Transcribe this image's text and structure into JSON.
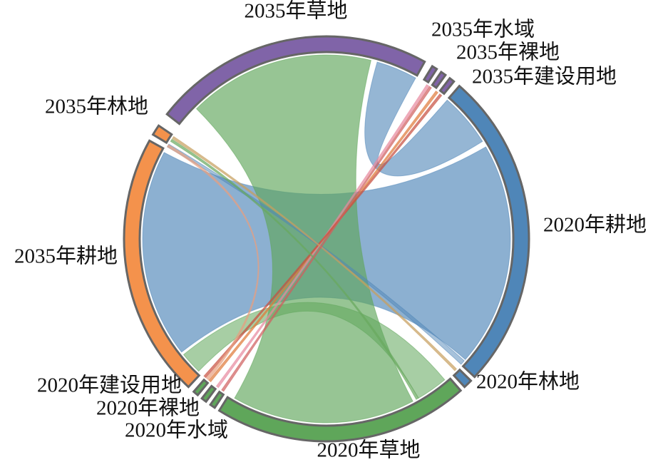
{
  "nodes": [
    {
      "label": "2035年草地",
      "color": "#8064a8"
    },
    {
      "label": "2035年水域",
      "color": "#8064a8"
    },
    {
      "label": "2035年裸地",
      "color": "#8064a8"
    },
    {
      "label": "2035年建设用地",
      "color": "#8064a8"
    },
    {
      "label": "2020年耕地",
      "color": "#4f86b8"
    },
    {
      "label": "2020年林地",
      "color": "#4f86b8"
    },
    {
      "label": "2020年草地",
      "color": "#5fa65a"
    },
    {
      "label": "2020年水域",
      "color": "#5fa65a"
    },
    {
      "label": "2020年裸地",
      "color": "#5fa65a"
    },
    {
      "label": "2020年建设用地",
      "color": "#5fa65a"
    },
    {
      "label": "2035年耕地",
      "color": "#f4924c"
    },
    {
      "label": "2035年林地",
      "color": "#f4924c"
    }
  ]
}
